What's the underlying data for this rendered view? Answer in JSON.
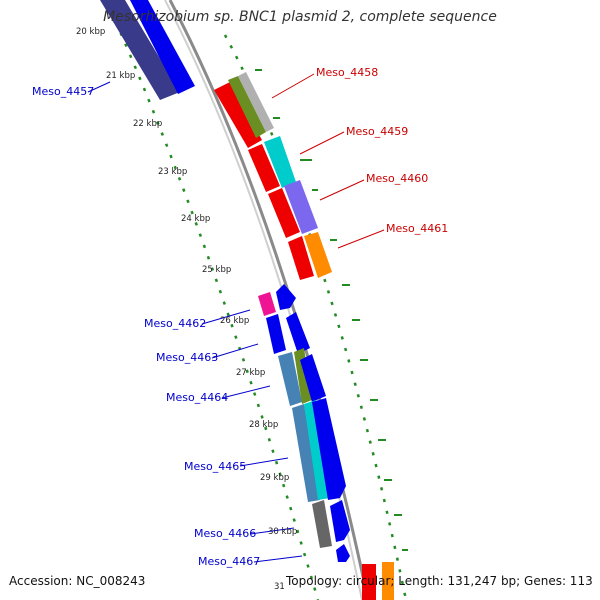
{
  "title": "Mesorhizobium sp. BNC1 plasmid 2, complete sequence",
  "accession": "Accession: NC_008243",
  "topology": "Topology: circular; Length: 131,247 bp; Genes: 113",
  "ruler_ticks": [
    "20 kbp",
    "21 kbp",
    "22 kbp",
    "23 kbp",
    "24 kbp",
    "25 kbp",
    "26 kbp",
    "27 kbp",
    "28 kbp",
    "29 kbp",
    "30 kbp",
    "31"
  ],
  "gene_labels_top": [
    "Meso_4458",
    "Meso_4459",
    "Meso_4460",
    "Meso_4461"
  ],
  "gene_labels_left": [
    "Meso_4457",
    "Meso_4462",
    "Meso_4463",
    "Meso_4464",
    "Meso_4465",
    "Meso_4466",
    "Meso_4467"
  ],
  "colors": {
    "blue_gene": "#0000ee",
    "navy_gene": "#3a3a8a",
    "red_gene": "#ee0000",
    "olive_cog": "#6b8e23",
    "cyan_cog": "#00cccc",
    "purple_cog": "#7b68ee",
    "orange_cog": "#ff8c00",
    "magenta_cog": "#ee1493",
    "steel_cog": "#4682b4",
    "gray_cog": "#666666",
    "backbone": "#8a8a8a",
    "gc_dots": "#228b22"
  }
}
